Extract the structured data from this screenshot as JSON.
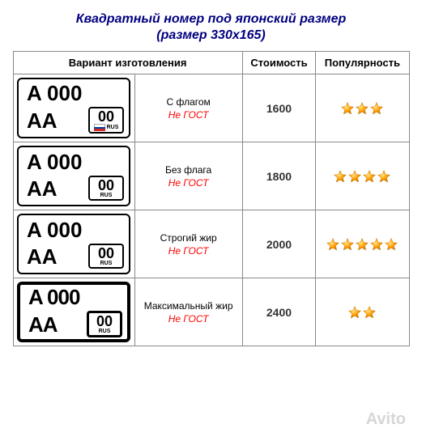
{
  "title": "Квадратный номер под японский размер",
  "subtitle": "(размер 330х165)",
  "columns": {
    "variant": "Вариант изготовления",
    "price": "Стоимость",
    "popularity": "Популярность"
  },
  "plate": {
    "top": "A 000",
    "bottom_left": "AA",
    "region_code": "00",
    "country": "RUS"
  },
  "rows": [
    {
      "name": "С флагом",
      "note": "Не ГОСТ",
      "price": "1600",
      "stars": 3,
      "has_flag": true,
      "weight": "normal"
    },
    {
      "name": "Без флага",
      "note": "Не ГОСТ",
      "price": "1800",
      "stars": 4,
      "has_flag": false,
      "weight": "normal"
    },
    {
      "name": "Строгий жир",
      "note": "Не ГОСТ",
      "price": "2000",
      "stars": 5,
      "has_flag": false,
      "weight": "strong"
    },
    {
      "name": "Максимальный жир",
      "note": "Не ГОСТ",
      "price": "2400",
      "stars": 2,
      "has_flag": false,
      "weight": "maxbold"
    }
  ],
  "star_color": "#ff9900",
  "watermark": "Avito"
}
